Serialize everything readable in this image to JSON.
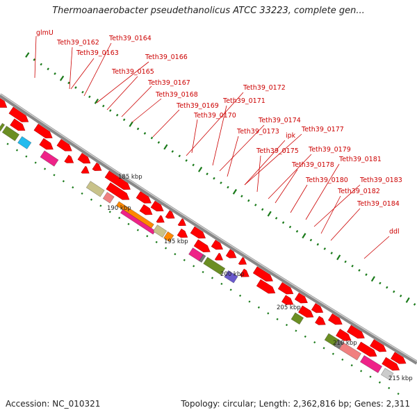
{
  "title": "Thermoanaerobacter pseudethanolicus ATCC 33223, complete gen...",
  "footer": {
    "accession": "Accession: NC_010321",
    "summary": "Topology: circular; Length: 2,362,816 bp; Genes: 2,311"
  },
  "colors": {
    "cds": "#ff0000",
    "backbone": "#999999",
    "label": "#cc0000",
    "tick": "#1a7a1a"
  },
  "scale_labels": [
    "185 kbp",
    "190 kbp",
    "195 kbp",
    "200 kbp",
    "205 kbp",
    "210 kbp",
    "215 kbp"
  ],
  "gene_labels": [
    "glmU",
    "Teth39_0162",
    "Teth39_0164",
    "Teth39_0163",
    "Teth39_0166",
    "Teth39_0165",
    "Teth39_0167",
    "Teth39_0168",
    "Teth39_0169",
    "Teth39_0170",
    "Teth39_0172",
    "Teth39_0171",
    "Teth39_0174",
    "Teth39_0173",
    "ipk",
    "Teth39_0177",
    "Teth39_0175",
    "Teth39_0179",
    "Teth39_0178",
    "Teth39_0181",
    "Teth39_0180",
    "Teth39_0183",
    "Teth39_0182",
    "Teth39_0184",
    "ddl"
  ]
}
